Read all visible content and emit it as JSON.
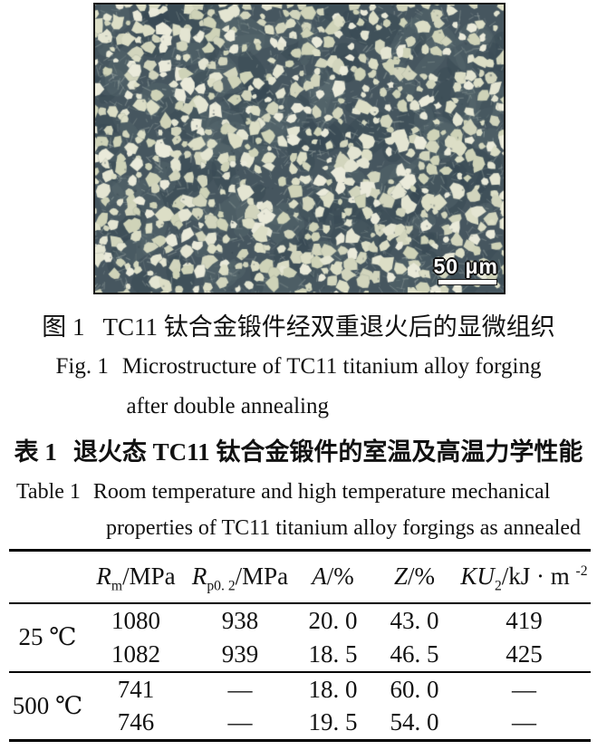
{
  "figure": {
    "caption_zh": {
      "label": "图 1",
      "text": "TC11 钛合金锻件经双重退火后的显微组织"
    },
    "caption_en": {
      "label": "Fig. 1",
      "line1": "Microstructure of TC11 titanium alloy forging",
      "line2": "after double annealing"
    },
    "micrograph": {
      "scale_bar_label": "50 μm",
      "matrix_color": "#46565f",
      "matrix_dark": "#35454f",
      "matrix_light": "#5c6d73",
      "grain_colors": [
        "#dcdec6",
        "#e4e5d2",
        "#d2d5bd",
        "#eaeada",
        "#cfd3b8"
      ]
    }
  },
  "table": {
    "title_zh": {
      "label": "表 1",
      "text": "退火态 TC11 钛合金锻件的室温及高温力学性能"
    },
    "title_en": {
      "label": "Table 1",
      "line1": "Room temperature and high temperature mechanical",
      "line2": "properties of TC11 titanium alloy forgings as annealed"
    },
    "columns": [
      {
        "sym": "R",
        "sub": "m",
        "unit": "/MPa",
        "sup": ""
      },
      {
        "sym": "R",
        "sub": "p0. 2",
        "unit": "/MPa",
        "sup": ""
      },
      {
        "sym": "A",
        "sub": "",
        "unit": "/%",
        "sup": ""
      },
      {
        "sym": "Z",
        "sub": "",
        "unit": "/%",
        "sup": ""
      },
      {
        "sym": "KU",
        "sub": "2",
        "unit": "/kJ · m ",
        "sup": "-2"
      }
    ],
    "groups": [
      {
        "condition": "25 ℃",
        "rows": [
          [
            "1080",
            "938",
            "20. 0",
            "43. 0",
            "419"
          ],
          [
            "1082",
            "939",
            "18. 5",
            "46. 5",
            "425"
          ]
        ]
      },
      {
        "condition": "500 ℃",
        "rows": [
          [
            "741",
            "—",
            "18. 0",
            "60. 0",
            "—"
          ],
          [
            "746",
            "—",
            "19. 5",
            "54. 0",
            "—"
          ]
        ]
      }
    ]
  }
}
